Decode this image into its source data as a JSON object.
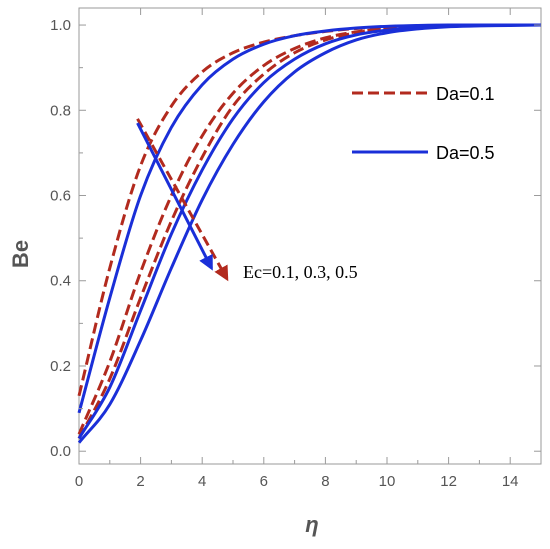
{
  "chart_data": {
    "type": "line",
    "title": "",
    "xlabel": "η",
    "ylabel": "Be",
    "xlim": [
      0,
      15
    ],
    "ylim": [
      -0.03,
      1.04
    ],
    "x_ticks": [
      "0",
      "2",
      "4",
      "6",
      "8",
      "10",
      "12",
      "14"
    ],
    "y_ticks": [
      "0.0",
      "0.2",
      "0.4",
      "0.6",
      "0.8",
      "1.0"
    ],
    "legend": {
      "placement": "top-right",
      "entries": [
        {
          "label": "Da=0.1",
          "color": "#b22a1e",
          "style": "dashed"
        },
        {
          "label": "Da=0.5",
          "color": "#1a2fd8",
          "style": "solid"
        }
      ]
    },
    "annotation": {
      "text": "Ec=0.1, 0.3, 0.5"
    },
    "series": [
      {
        "group": "Da=0.1",
        "color": "#b22a1e",
        "style": "dashed",
        "x": [
          0,
          1,
          2,
          3,
          4,
          5,
          6,
          7,
          8,
          9,
          10,
          11,
          12,
          13,
          14,
          15
        ],
        "y": [
          0.13,
          0.43,
          0.67,
          0.81,
          0.89,
          0.935,
          0.96,
          0.975,
          0.985,
          0.992,
          0.996,
          0.998,
          0.999,
          1.0,
          1.0,
          1.0
        ]
      },
      {
        "group": "Da=0.1",
        "color": "#b22a1e",
        "style": "dashed",
        "x": [
          0,
          1,
          2,
          3,
          4,
          5,
          6,
          7,
          8,
          9,
          10,
          11,
          12,
          13,
          14,
          15
        ],
        "y": [
          0.04,
          0.21,
          0.42,
          0.6,
          0.74,
          0.84,
          0.905,
          0.945,
          0.97,
          0.984,
          0.992,
          0.996,
          0.998,
          0.999,
          1.0,
          1.0
        ]
      },
      {
        "group": "Da=0.1",
        "color": "#b22a1e",
        "style": "dashed",
        "x": [
          0,
          1,
          2,
          3,
          4,
          5,
          6,
          7,
          8,
          9,
          10,
          11,
          12,
          13,
          14,
          15
        ],
        "y": [
          0.03,
          0.17,
          0.36,
          0.54,
          0.69,
          0.81,
          0.885,
          0.935,
          0.965,
          0.982,
          0.991,
          0.996,
          0.998,
          0.999,
          1.0,
          1.0
        ]
      },
      {
        "group": "Da=0.5",
        "color": "#1a2fd8",
        "style": "solid",
        "x": [
          0,
          1,
          2,
          3,
          4,
          5,
          6,
          7,
          8,
          9,
          10,
          11,
          12,
          13,
          14,
          15
        ],
        "y": [
          0.09,
          0.36,
          0.6,
          0.76,
          0.86,
          0.92,
          0.955,
          0.975,
          0.986,
          0.993,
          0.997,
          0.999,
          1.0,
          1.0,
          1.0,
          1.0
        ]
      },
      {
        "group": "Da=0.5",
        "color": "#1a2fd8",
        "style": "solid",
        "x": [
          0,
          1,
          2,
          3,
          4,
          5,
          6,
          7,
          8,
          9,
          10,
          11,
          12,
          13,
          14,
          15
        ],
        "y": [
          0.03,
          0.15,
          0.33,
          0.51,
          0.66,
          0.78,
          0.865,
          0.92,
          0.956,
          0.977,
          0.988,
          0.994,
          0.997,
          0.999,
          1.0,
          1.0
        ]
      },
      {
        "group": "Da=0.5",
        "color": "#1a2fd8",
        "style": "solid",
        "x": [
          0,
          1,
          2,
          3,
          4,
          5,
          6,
          7,
          8,
          9,
          10,
          11,
          12,
          13,
          14,
          15
        ],
        "y": [
          0.02,
          0.11,
          0.26,
          0.43,
          0.59,
          0.72,
          0.82,
          0.89,
          0.935,
          0.965,
          0.982,
          0.991,
          0.996,
          0.998,
          0.999,
          1.0
        ]
      }
    ],
    "arrows": [
      {
        "color": "#b22a1e",
        "from": [
          1.9,
          0.78
        ],
        "to": [
          4.8,
          0.405
        ]
      },
      {
        "color": "#1a2fd8",
        "from": [
          1.9,
          0.77
        ],
        "to": [
          4.3,
          0.43
        ]
      }
    ]
  }
}
